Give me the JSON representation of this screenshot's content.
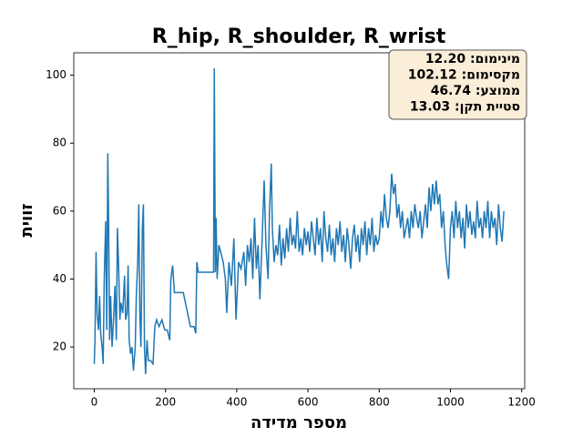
{
  "chart_data": {
    "type": "line",
    "title": "R_hip, R_shoulder, R_wrist",
    "x_label": "מספר מדידה",
    "y_label": "זווית",
    "annotation_lines": [
      "מינימום: 12.20",
      "מקסימום: 102.12",
      "ממוצע: 46.74",
      "סטיית תקן: 13.03"
    ],
    "color": "#1f77b4",
    "xlim": [
      -57.5,
      1208.5
    ],
    "ylim": [
      7.7,
      106.6
    ],
    "xticks": [
      0,
      200,
      400,
      600,
      800,
      1000,
      1200
    ],
    "yticks": [
      20,
      40,
      60,
      80,
      100
    ],
    "x": [
      0,
      2,
      5,
      8,
      12,
      15,
      18,
      22,
      25,
      28,
      32,
      35,
      38,
      40,
      43,
      46,
      50,
      55,
      58,
      62,
      65,
      68,
      72,
      75,
      80,
      85,
      88,
      92,
      95,
      98,
      102,
      106,
      110,
      115,
      118,
      122,
      125,
      128,
      131,
      135,
      138,
      141,
      144,
      148,
      152,
      158,
      165,
      170,
      175,
      182,
      190,
      198,
      205,
      212,
      215,
      220,
      225,
      235,
      250,
      270,
      280,
      285,
      288,
      292,
      320,
      335,
      337,
      340,
      342,
      345,
      350,
      355,
      362,
      368,
      372,
      378,
      385,
      392,
      398,
      405,
      412,
      420,
      425,
      430,
      435,
      440,
      445,
      450,
      455,
      460,
      465,
      470,
      477,
      482,
      488,
      492,
      497,
      500,
      505,
      510,
      515,
      520,
      525,
      530,
      535,
      540,
      545,
      550,
      555,
      560,
      565,
      570,
      575,
      580,
      585,
      590,
      595,
      600,
      605,
      610,
      615,
      620,
      625,
      630,
      635,
      640,
      645,
      650,
      655,
      660,
      665,
      670,
      675,
      680,
      685,
      690,
      695,
      700,
      705,
      710,
      715,
      720,
      725,
      730,
      735,
      740,
      745,
      750,
      755,
      760,
      765,
      770,
      775,
      780,
      785,
      790,
      795,
      800,
      805,
      810,
      815,
      820,
      825,
      830,
      835,
      840,
      845,
      850,
      855,
      860,
      865,
      870,
      875,
      880,
      885,
      890,
      895,
      900,
      905,
      910,
      915,
      920,
      925,
      930,
      935,
      940,
      945,
      950,
      955,
      960,
      965,
      970,
      975,
      980,
      985,
      990,
      995,
      1000,
      1005,
      1010,
      1015,
      1020,
      1025,
      1030,
      1035,
      1040,
      1045,
      1050,
      1055,
      1060,
      1065,
      1070,
      1075,
      1080,
      1085,
      1090,
      1095,
      1100,
      1105,
      1110,
      1115,
      1120,
      1125,
      1130,
      1135,
      1140,
      1145,
      1150
    ],
    "values": [
      15,
      22,
      48,
      30,
      25,
      35,
      24,
      20,
      15,
      40,
      57,
      25,
      77,
      60,
      22,
      35,
      20,
      30,
      38,
      22,
      55,
      45,
      28,
      33,
      30,
      41,
      28,
      30,
      44,
      22,
      18,
      20,
      13,
      20,
      35,
      45,
      62,
      30,
      20,
      55,
      62,
      20,
      12,
      22,
      16,
      16,
      15,
      26,
      28,
      26,
      28,
      25,
      25,
      22,
      40,
      44,
      36,
      36,
      36,
      26,
      26,
      24,
      45,
      42,
      42,
      42,
      102,
      42,
      58,
      40,
      50,
      48,
      45,
      40,
      30,
      45,
      38,
      52,
      28,
      45,
      43,
      48,
      38,
      50,
      45,
      52,
      40,
      58,
      43,
      50,
      34,
      48,
      69,
      50,
      40,
      60,
      74,
      55,
      45,
      50,
      47,
      56,
      44,
      52,
      46,
      55,
      48,
      58,
      50,
      53,
      49,
      60,
      48,
      52,
      47,
      55,
      50,
      54,
      48,
      57,
      52,
      47,
      58,
      50,
      55,
      45,
      60,
      52,
      48,
      56,
      47,
      52,
      45,
      55,
      50,
      57,
      48,
      53,
      45,
      55,
      50,
      43,
      52,
      56,
      48,
      53,
      45,
      55,
      50,
      57,
      47,
      55,
      50,
      58,
      48,
      53,
      50,
      52,
      60,
      55,
      65,
      58,
      55,
      60,
      71,
      65,
      68,
      58,
      62,
      55,
      60,
      52,
      55,
      58,
      52,
      60,
      55,
      62,
      58,
      55,
      60,
      52,
      57,
      62,
      55,
      67,
      60,
      68,
      62,
      69,
      62,
      65,
      55,
      60,
      50,
      44,
      40,
      55,
      60,
      52,
      63,
      55,
      60,
      52,
      58,
      49,
      62,
      55,
      60,
      53,
      57,
      52,
      63,
      55,
      58,
      52,
      60,
      55,
      63,
      52,
      60,
      55,
      58,
      50,
      62,
      55,
      51,
      60
    ]
  }
}
